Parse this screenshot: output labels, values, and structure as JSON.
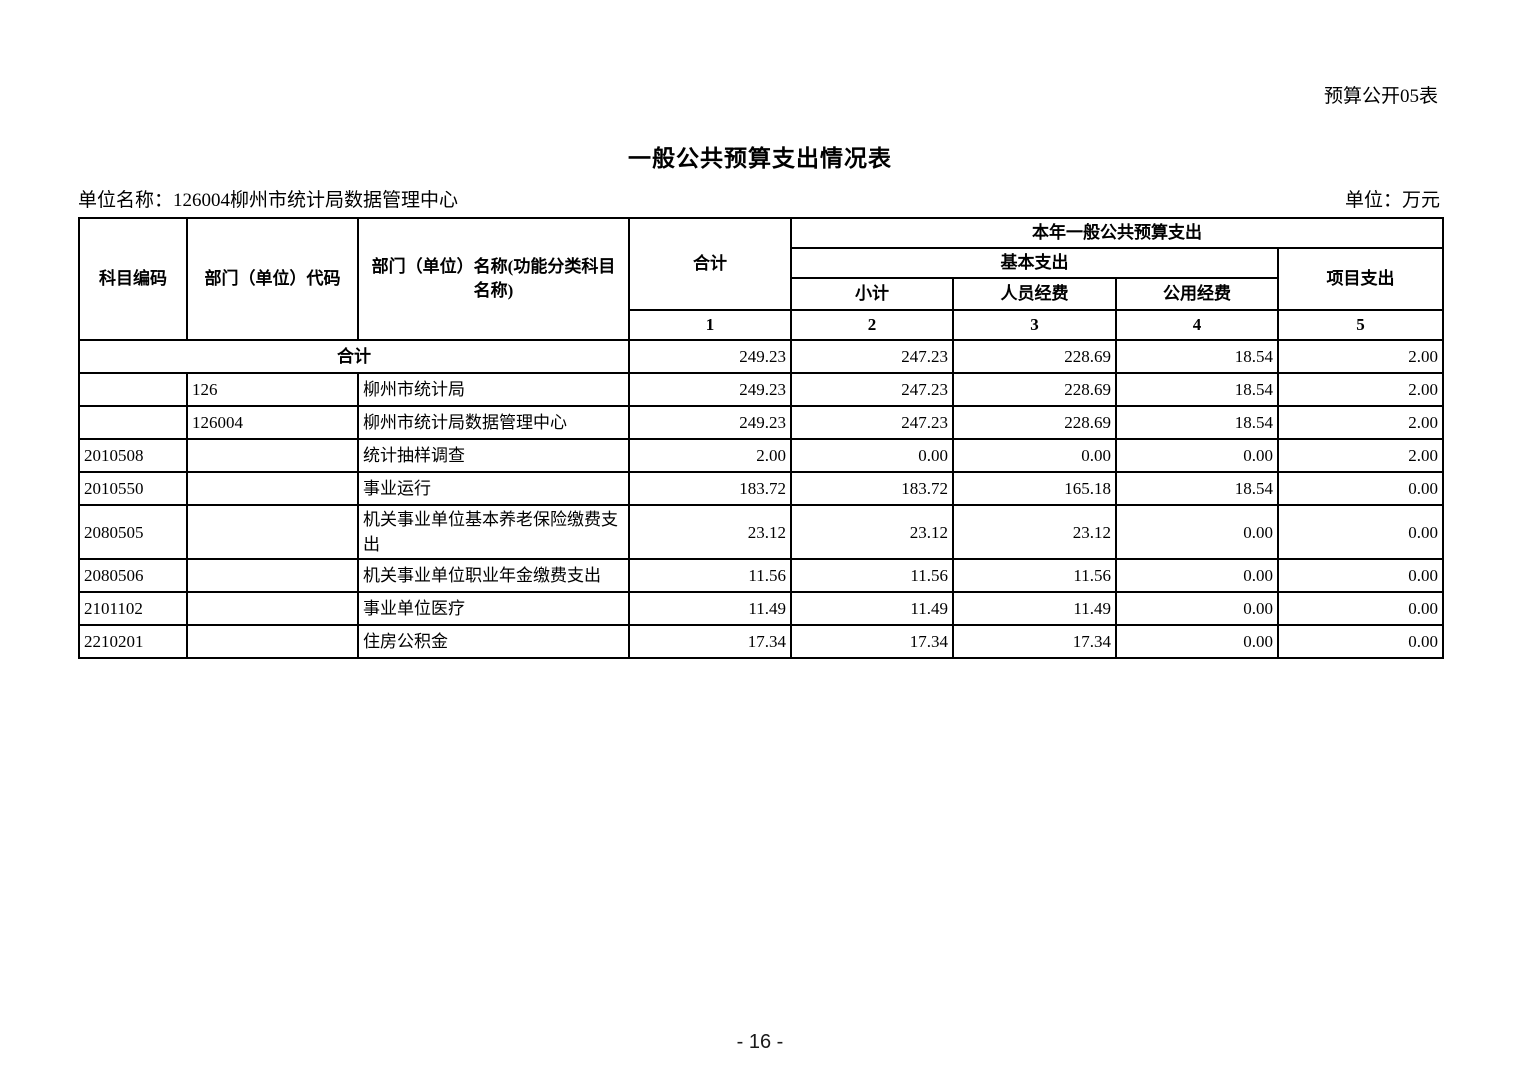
{
  "page": {
    "doc_label": "预算公开05表",
    "title": "一般公共预算支出情况表",
    "unit_name": "单位名称：126004柳州市统计局数据管理中心",
    "unit_of_measure": "单位：万元",
    "page_number": "- 16 -"
  },
  "table": {
    "header": {
      "subject_code": "科目编码",
      "dept_code": "部门（单位）代码",
      "dept_name": "部门（单位）名称(功能分类科目名称)",
      "total": "合计",
      "current_year_expenditure": "本年一般公共预算支出",
      "basic_expenditure": "基本支出",
      "subtotal": "小计",
      "personnel_funds": "人员经费",
      "public_funds": "公用经费",
      "project_expenditure": "项目支出",
      "col_numbers": [
        "1",
        "2",
        "3",
        "4",
        "5"
      ]
    },
    "rows": [
      {
        "merged": true,
        "row_label": "合计",
        "values": [
          "249.23",
          "247.23",
          "228.69",
          "18.54",
          "2.00"
        ]
      },
      {
        "code": "",
        "dept_code": "126",
        "name": "柳州市统计局",
        "values": [
          "249.23",
          "247.23",
          "228.69",
          "18.54",
          "2.00"
        ]
      },
      {
        "code": "",
        "dept_code": "126004",
        "name": "柳州市统计局数据管理中心",
        "values": [
          "249.23",
          "247.23",
          "228.69",
          "18.54",
          "2.00"
        ]
      },
      {
        "code": "2010508",
        "dept_code": "",
        "name": "统计抽样调查",
        "values": [
          "2.00",
          "0.00",
          "0.00",
          "0.00",
          "2.00"
        ]
      },
      {
        "code": "2010550",
        "dept_code": "",
        "name": "事业运行",
        "values": [
          "183.72",
          "183.72",
          "165.18",
          "18.54",
          "0.00"
        ]
      },
      {
        "code": "2080505",
        "dept_code": "",
        "name": "机关事业单位基本养老保险缴费支出",
        "values": [
          "23.12",
          "23.12",
          "23.12",
          "0.00",
          "0.00"
        ]
      },
      {
        "code": "2080506",
        "dept_code": "",
        "name": "机关事业单位职业年金缴费支出",
        "values": [
          "11.56",
          "11.56",
          "11.56",
          "0.00",
          "0.00"
        ]
      },
      {
        "code": "2101102",
        "dept_code": "",
        "name": "事业单位医疗",
        "values": [
          "11.49",
          "11.49",
          "11.49",
          "0.00",
          "0.00"
        ]
      },
      {
        "code": "2210201",
        "dept_code": "",
        "name": "住房公积金",
        "values": [
          "17.34",
          "17.34",
          "17.34",
          "0.00",
          "0.00"
        ]
      }
    ]
  }
}
